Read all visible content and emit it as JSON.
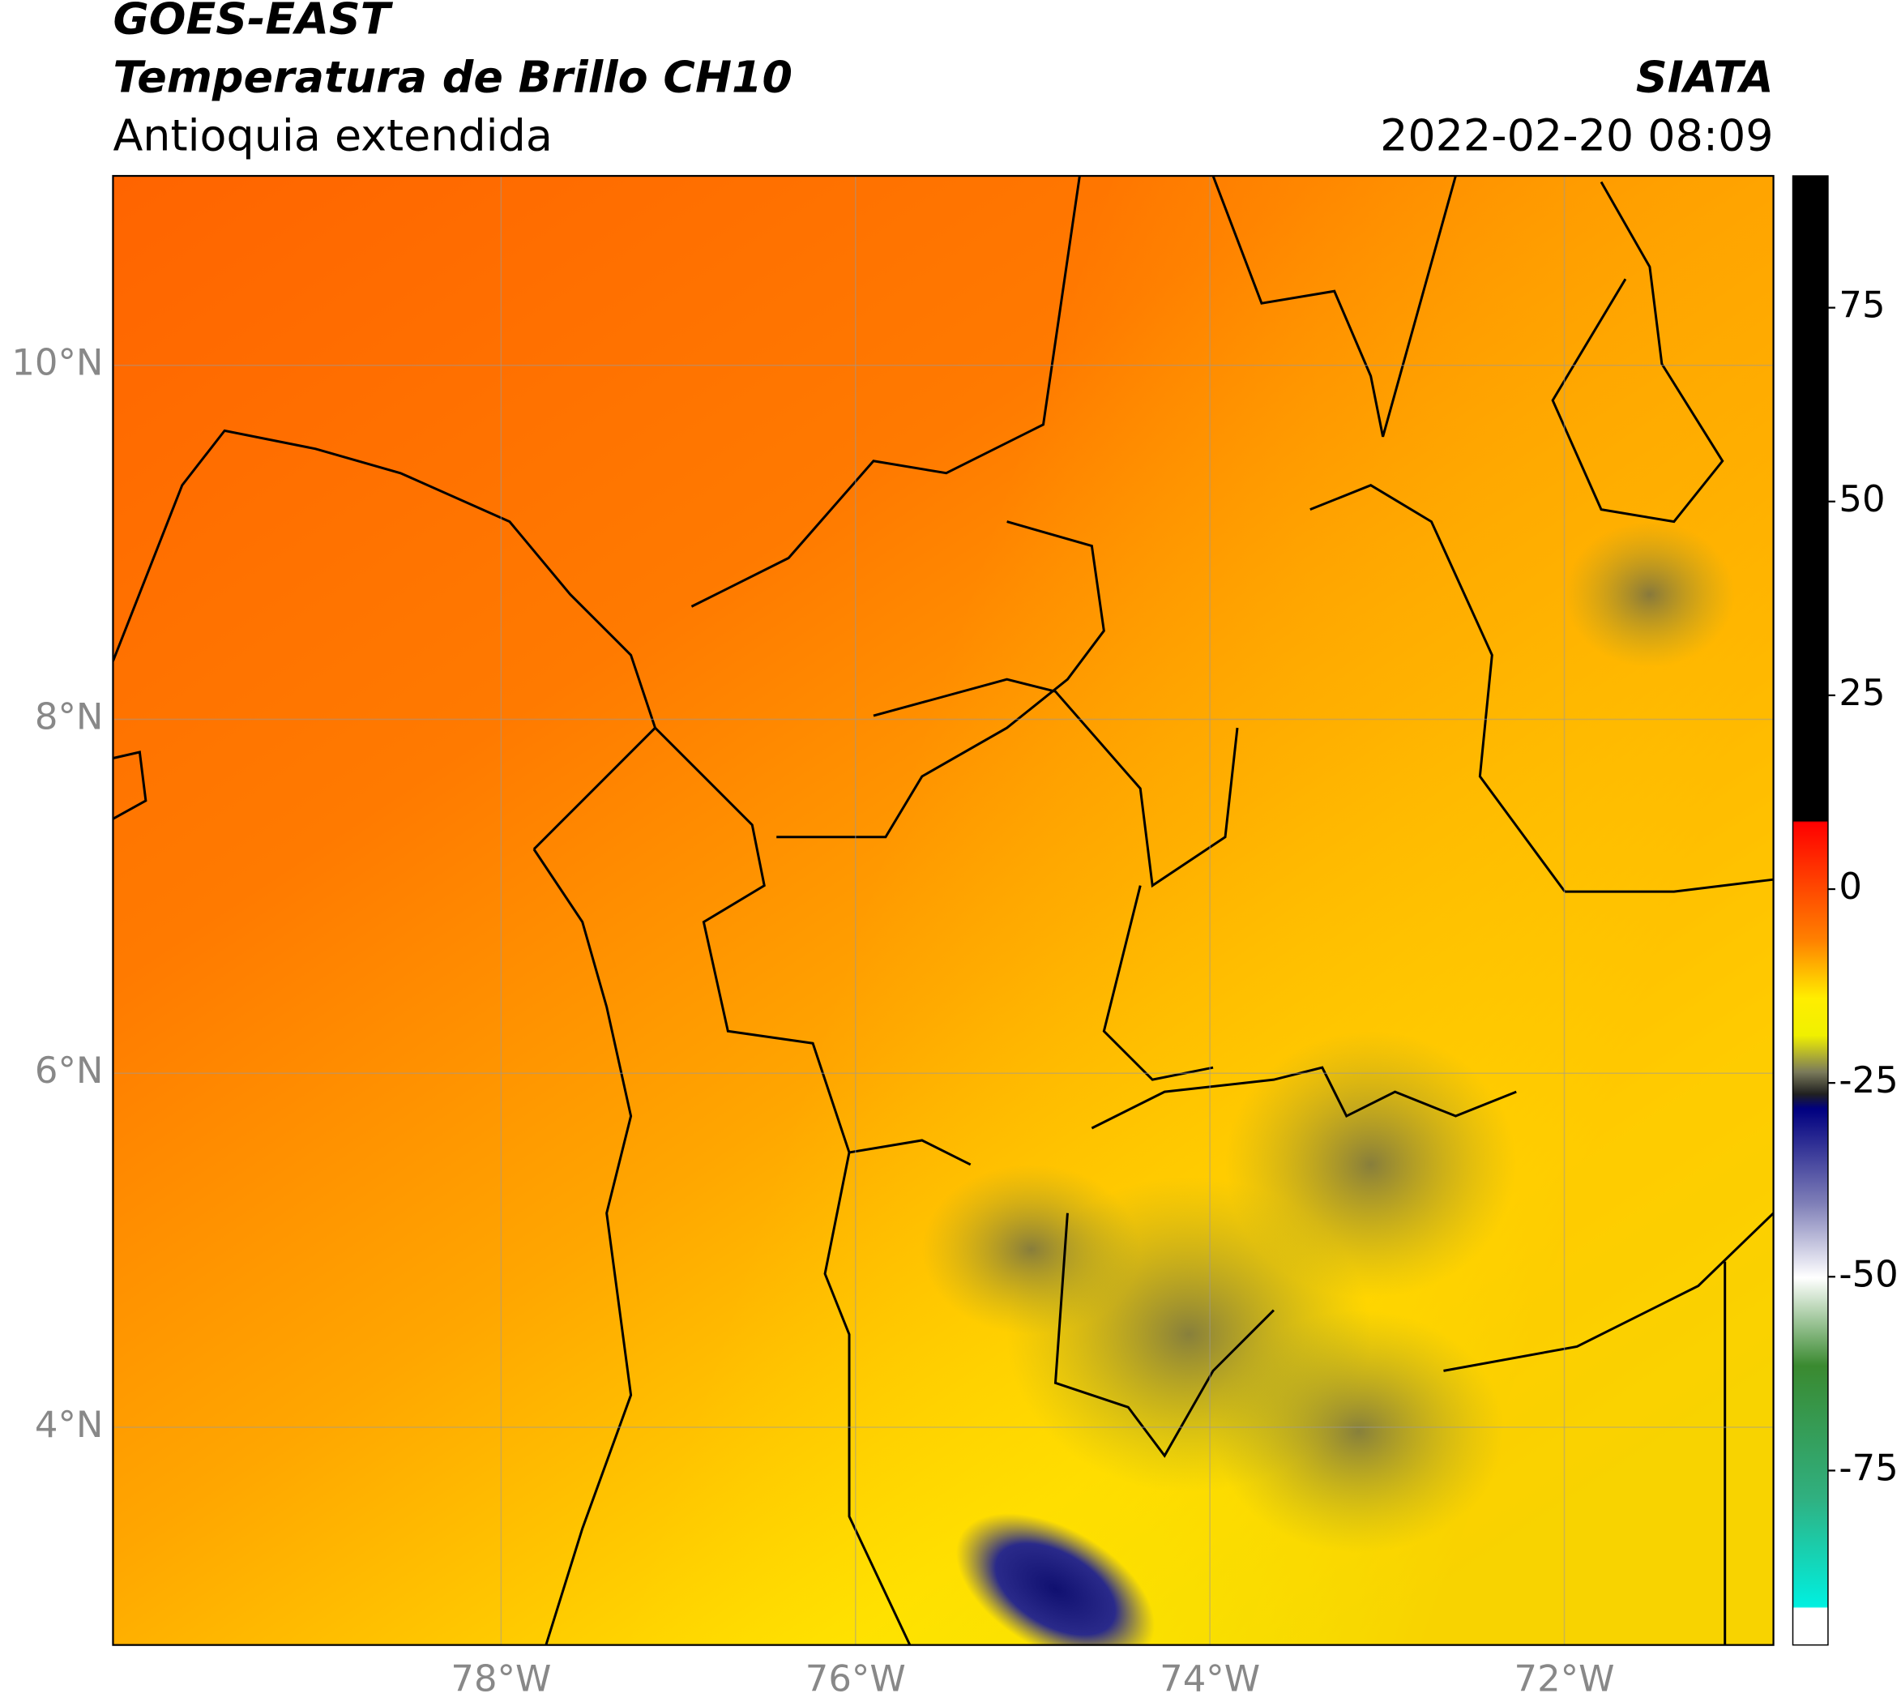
{
  "header": {
    "title": "GOES-EAST",
    "subtitle": "Temperatura de Brillo CH10",
    "region": "Antioquia extendida",
    "source": "SIATA",
    "datetime": "2022-02-20 08:09"
  },
  "map": {
    "xlim": [
      -80.19,
      -70.82
    ],
    "ylim": [
      2.77,
      11.07
    ],
    "xticks": [
      {
        "value": -78,
        "label": "78°W"
      },
      {
        "value": -76,
        "label": "76°W"
      },
      {
        "value": -74,
        "label": "74°W"
      },
      {
        "value": -72,
        "label": "72°W"
      }
    ],
    "yticks": [
      {
        "value": 4,
        "label": "4°N"
      },
      {
        "value": 6,
        "label": "6°N"
      },
      {
        "value": 8,
        "label": "8°N"
      },
      {
        "value": 10,
        "label": "10°N"
      }
    ],
    "grid": true
  },
  "colorbar": {
    "lim": [
      -97.5,
      92
    ],
    "ticks": [
      -75,
      -50,
      -25,
      0,
      25,
      50,
      75
    ]
  }
}
